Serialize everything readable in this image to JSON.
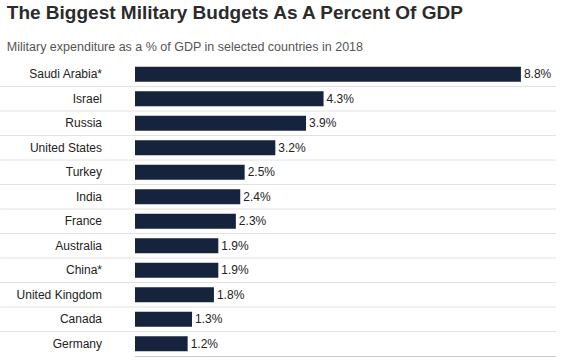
{
  "chart_data": {
    "type": "bar",
    "title": "The Biggest Military Budgets As A Percent Of GDP",
    "subtitle": "Military expenditure as a % of GDP in selected countries in 2018",
    "categories": [
      "Saudi Arabia*",
      "Israel",
      "Russia",
      "United States",
      "Turkey",
      "India",
      "France",
      "Australia",
      "China*",
      "United Kingdom",
      "Canada",
      "Germany"
    ],
    "values": [
      8.8,
      4.3,
      3.9,
      3.2,
      2.5,
      2.4,
      2.3,
      1.9,
      1.9,
      1.8,
      1.3,
      1.2
    ],
    "value_labels": [
      "8.8%",
      "4.3%",
      "3.9%",
      "3.2%",
      "2.5%",
      "2.4%",
      "2.3%",
      "1.9%",
      "1.9%",
      "1.8%",
      "1.3%",
      "1.2%"
    ],
    "color": "#16233d",
    "xlim": [
      0,
      9.6
    ],
    "orientation": "horizontal",
    "data_labels": true,
    "tick_labels": "y",
    "grid": false
  }
}
